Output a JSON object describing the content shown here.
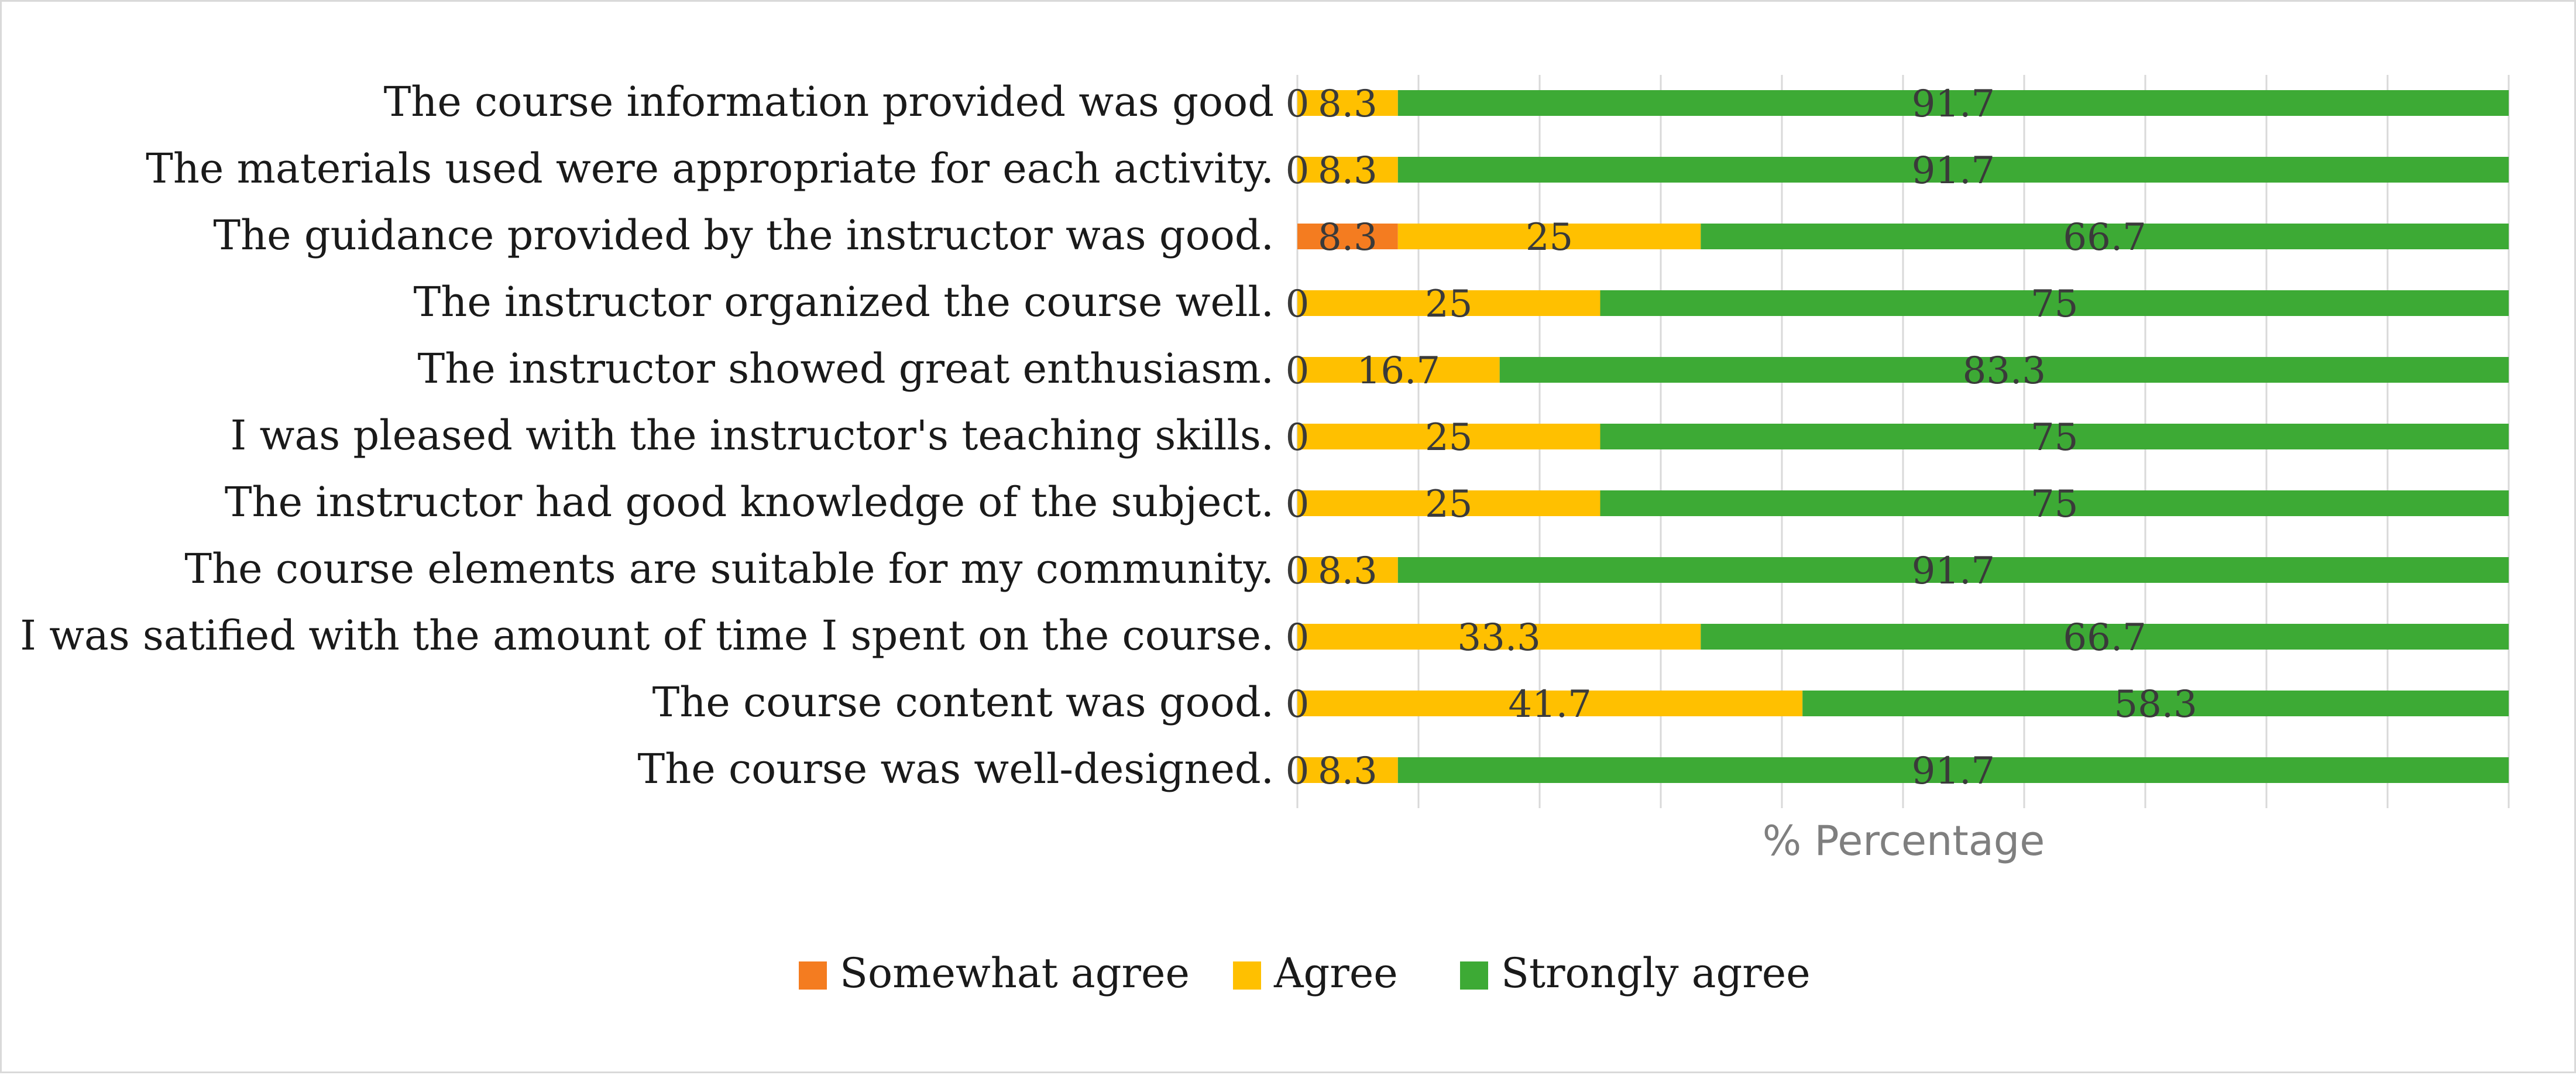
{
  "chart_data": {
    "type": "bar",
    "orientation": "horizontal",
    "stacked": true,
    "title": "",
    "xlabel": "% Percentage",
    "ylabel": "",
    "xlim": [
      0,
      100
    ],
    "grid": true,
    "legend_position": "bottom",
    "categories": [
      "The course information provided was good",
      "The materials used were appropriate for each activity.",
      "The guidance provided by the instructor was good.",
      "The instructor organized the course well.",
      "The instructor showed great enthusiasm.",
      "I was pleased with the instructor's teaching skills.",
      "The instructor had good knowledge of the subject.",
      "The course elements are suitable for my community.",
      "I was satified with the amount of time I spent on the course.",
      "The course content was good.",
      "The course was well-designed."
    ],
    "series": [
      {
        "name": "Somewhat agree",
        "color": "#f47c20",
        "values": [
          0,
          0,
          8.3,
          0,
          0,
          0,
          0,
          0,
          0,
          0,
          0
        ]
      },
      {
        "name": "Agree",
        "color": "#ffc000",
        "values": [
          8.3,
          8.3,
          25,
          25,
          16.7,
          25,
          25,
          8.3,
          33.3,
          41.7,
          8.3
        ]
      },
      {
        "name": "Strongly agree",
        "color": "#3daa35",
        "values": [
          91.7,
          91.7,
          66.7,
          75,
          83.3,
          75,
          75,
          91.7,
          66.7,
          58.3,
          91.7
        ]
      }
    ]
  }
}
